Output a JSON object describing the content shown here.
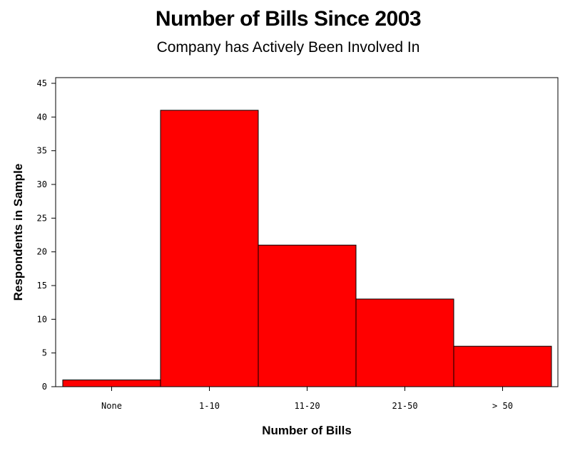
{
  "chart_data": {
    "type": "bar",
    "title": "Number of Bills Since 2003",
    "subtitle": "Company has Actively Been Involved In",
    "xlabel": "Number of Bills",
    "ylabel": "Respondents in Sample",
    "categories": [
      "None",
      "1-10",
      "11-20",
      "21-50",
      "> 50"
    ],
    "values": [
      1,
      41,
      21,
      13,
      6
    ],
    "ylim": [
      0,
      45
    ],
    "yticks": [
      0,
      5,
      10,
      15,
      20,
      25,
      30,
      35,
      40,
      45
    ],
    "grid": false,
    "legend": "none",
    "bar_color": "#ff0000",
    "edge_color": "#000000"
  }
}
